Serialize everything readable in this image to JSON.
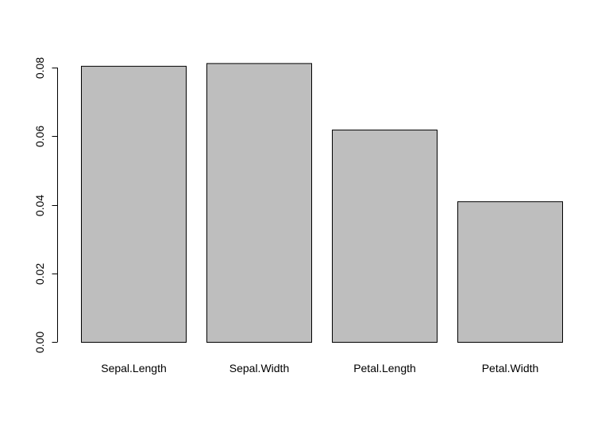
{
  "chart_data": {
    "type": "bar",
    "categories": [
      "Sepal.Length",
      "Sepal.Width",
      "Petal.Length",
      "Petal.Width"
    ],
    "values": [
      0.0805,
      0.0813,
      0.0619,
      0.041
    ],
    "yticks": [
      "0.00",
      "0.02",
      "0.04",
      "0.06",
      "0.08"
    ],
    "ylim": [
      0,
      0.08
    ],
    "xlabel": "",
    "ylabel": "",
    "title": "",
    "grid": false,
    "legend": "none",
    "colors": {
      "bar_fill": "#bebebe",
      "bar_stroke": "#000000",
      "axis": "#000000"
    }
  }
}
